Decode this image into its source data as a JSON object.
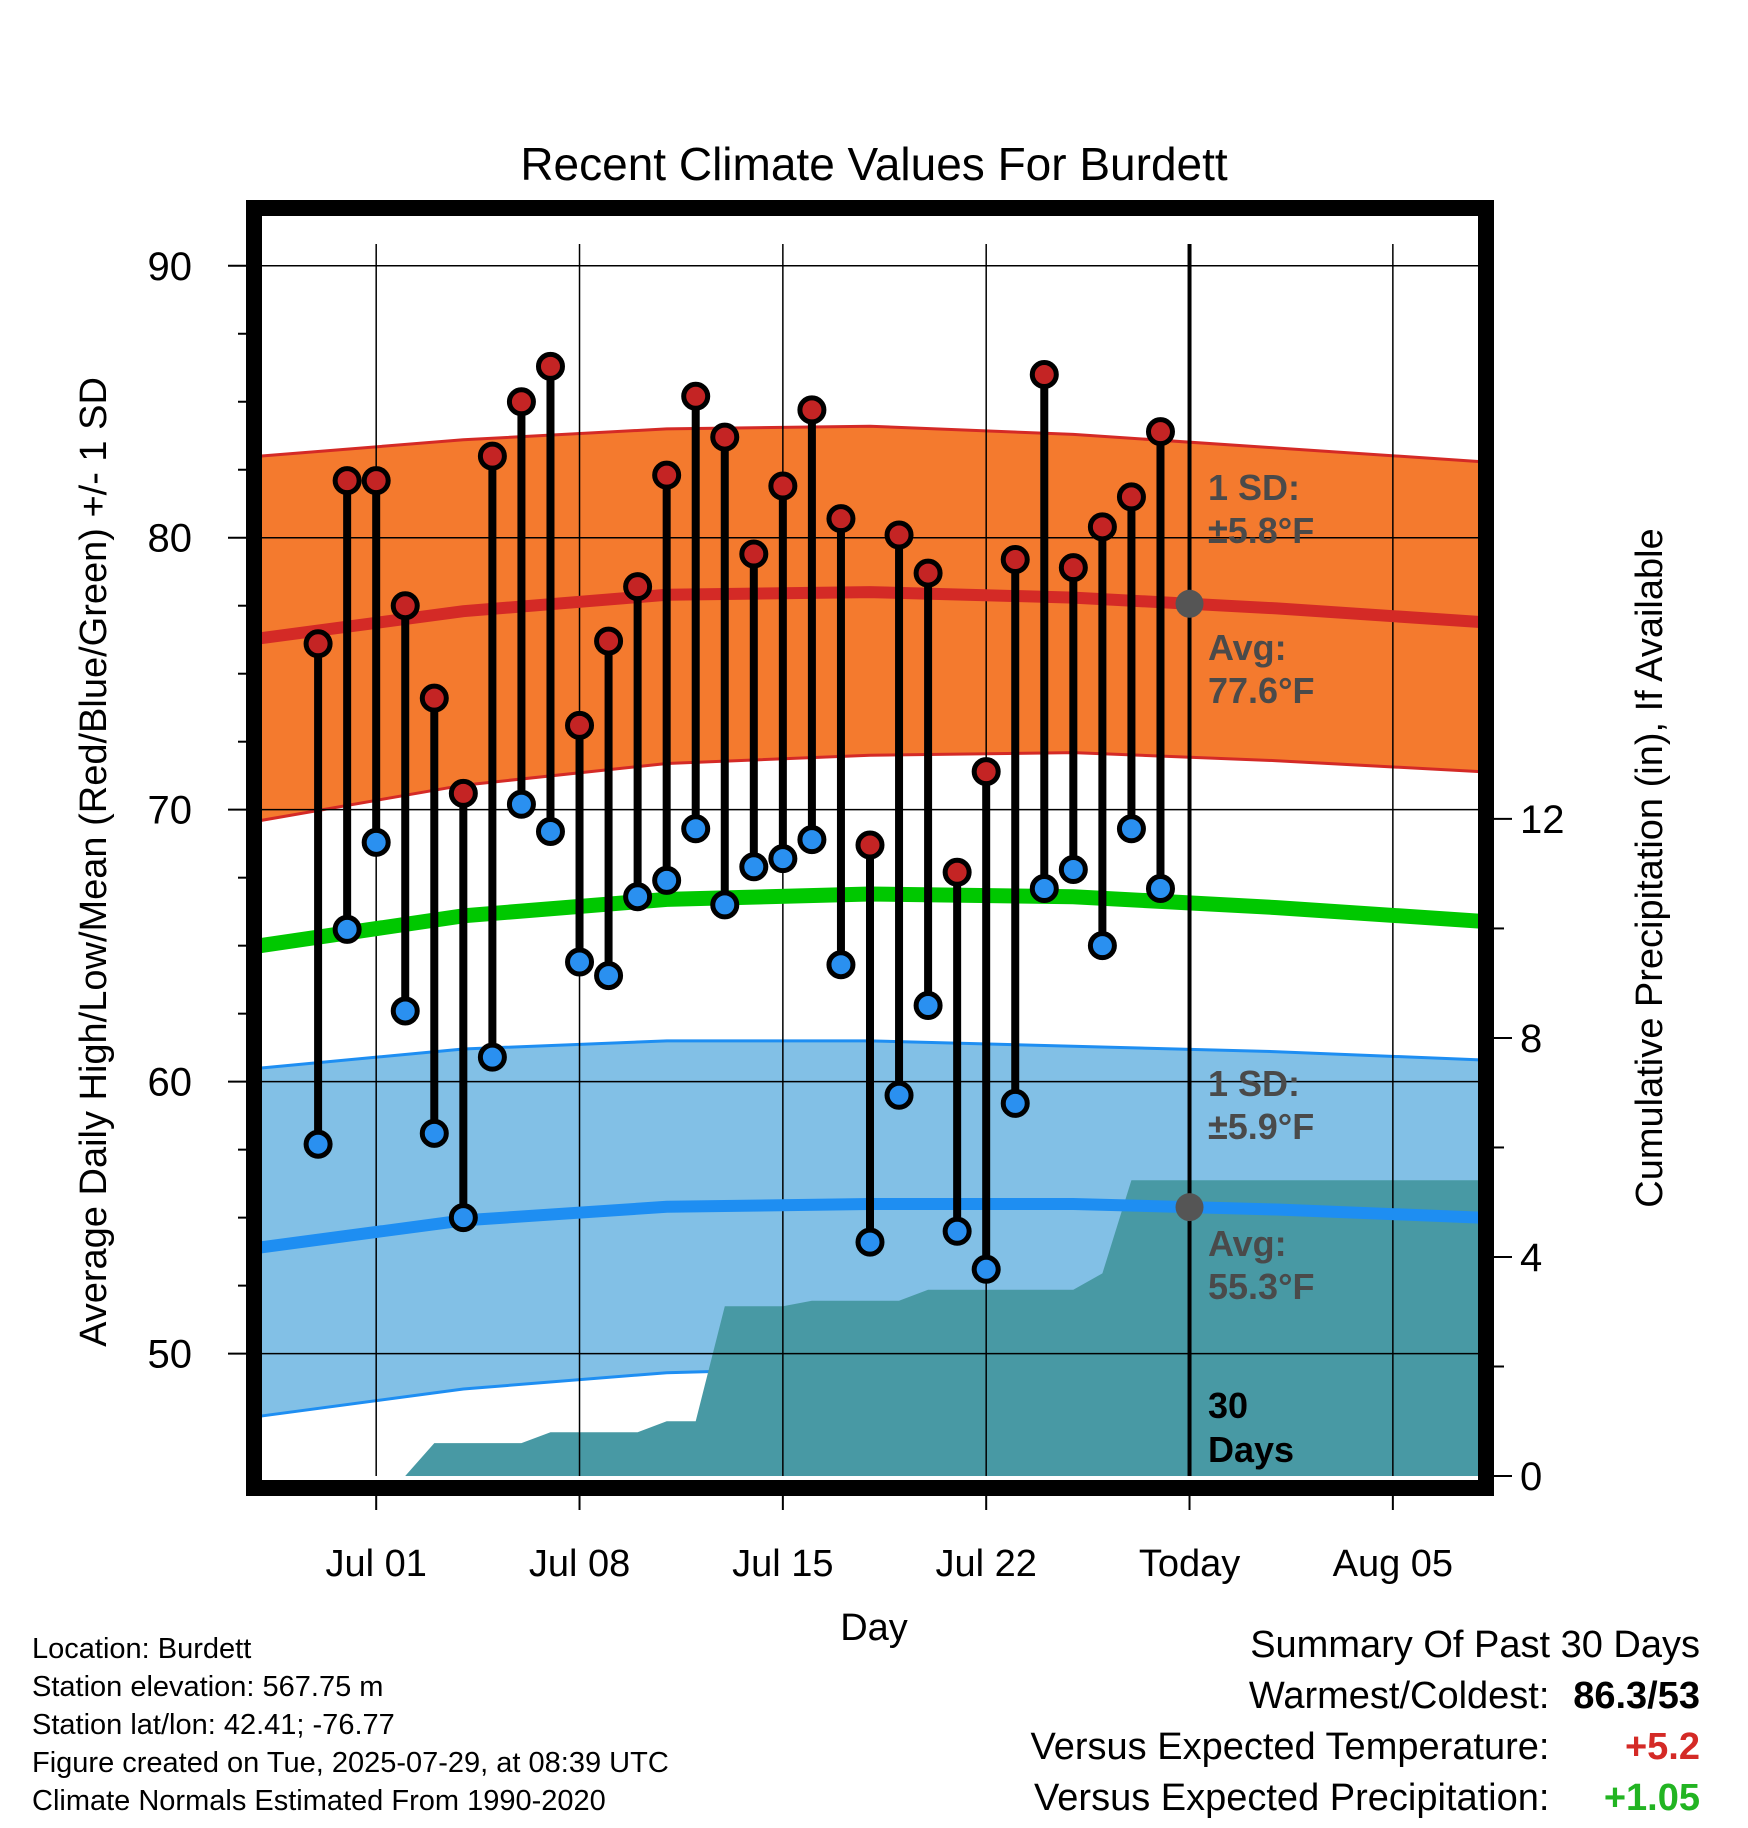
{
  "chart_data": {
    "type": "line",
    "title": "Recent Climate Values For Burdett",
    "xlabel": "Day",
    "ylabel": "Average Daily High/Low/Mean (Red/Blue/Green) +/- 1 SD",
    "y2label": "Cumulative Precipitation (in), If Available",
    "x_ticks": [
      "Jul 01",
      "Jul 08",
      "Jul 15",
      "Jul 22",
      "Today",
      "Aug 05"
    ],
    "x_range": [
      "2025-06-27",
      "2025-08-08"
    ],
    "ylim": [
      45.5,
      90.8
    ],
    "y_ticks": [
      50,
      60,
      70,
      80,
      90
    ],
    "y2lim": [
      0,
      22.5
    ],
    "y2_ticks": [
      0,
      4,
      8,
      12
    ],
    "today": "2025-07-29",
    "grid": true,
    "daily": {
      "dates": [
        "2025-06-29",
        "2025-06-30",
        "2025-07-01",
        "2025-07-02",
        "2025-07-03",
        "2025-07-04",
        "2025-07-05",
        "2025-07-06",
        "2025-07-07",
        "2025-07-08",
        "2025-07-09",
        "2025-07-10",
        "2025-07-11",
        "2025-07-12",
        "2025-07-13",
        "2025-07-14",
        "2025-07-15",
        "2025-07-16",
        "2025-07-17",
        "2025-07-18",
        "2025-07-19",
        "2025-07-20",
        "2025-07-21",
        "2025-07-22",
        "2025-07-23",
        "2025-07-24",
        "2025-07-25",
        "2025-07-26",
        "2025-07-27",
        "2025-07-28"
      ],
      "high": [
        76.1,
        82.1,
        82.1,
        77.5,
        74.1,
        70.6,
        83.0,
        85.0,
        86.3,
        73.1,
        76.2,
        78.2,
        82.3,
        85.2,
        83.7,
        79.4,
        81.9,
        84.7,
        80.7,
        68.7,
        80.1,
        78.7,
        67.7,
        71.4,
        79.2,
        86.0,
        78.9,
        80.4,
        81.5,
        83.9
      ],
      "low": [
        57.7,
        65.6,
        68.8,
        62.6,
        58.1,
        55.0,
        60.9,
        70.2,
        69.2,
        64.4,
        63.9,
        66.8,
        67.4,
        69.3,
        66.5,
        67.9,
        68.2,
        68.9,
        64.3,
        54.1,
        59.5,
        62.8,
        54.5,
        53.1,
        59.2,
        67.1,
        67.8,
        65.0,
        69.3,
        67.1
      ]
    },
    "normals": {
      "dates": [
        "2025-06-27",
        "2025-07-04",
        "2025-07-11",
        "2025-07-18",
        "2025-07-25",
        "2025-08-01",
        "2025-08-08"
      ],
      "avg_high": [
        76.3,
        77.3,
        77.9,
        78.0,
        77.8,
        77.4,
        76.9
      ],
      "avg_high_upper": [
        83.0,
        83.6,
        84.0,
        84.1,
        83.8,
        83.3,
        82.8
      ],
      "avg_high_lower": [
        69.6,
        70.9,
        71.7,
        72.0,
        72.1,
        71.8,
        71.4
      ],
      "avg_mean": [
        65.0,
        66.1,
        66.7,
        66.9,
        66.8,
        66.4,
        65.9
      ],
      "avg_low": [
        53.9,
        54.9,
        55.4,
        55.5,
        55.5,
        55.3,
        55.0
      ],
      "avg_low_upper": [
        60.5,
        61.2,
        61.5,
        61.5,
        61.3,
        61.1,
        60.8
      ],
      "avg_low_lower": [
        47.7,
        48.7,
        49.3,
        49.5,
        49.5,
        49.4,
        49.2
      ]
    },
    "precip": {
      "dates": [
        "2025-07-02",
        "2025-07-03",
        "2025-07-04",
        "2025-07-05",
        "2025-07-06",
        "2025-07-07",
        "2025-07-08",
        "2025-07-09",
        "2025-07-10",
        "2025-07-11",
        "2025-07-12",
        "2025-07-13",
        "2025-07-14",
        "2025-07-15",
        "2025-07-16",
        "2025-07-17",
        "2025-07-18",
        "2025-07-19",
        "2025-07-20",
        "2025-07-21",
        "2025-07-22",
        "2025-07-23",
        "2025-07-24",
        "2025-07-25",
        "2025-07-26",
        "2025-07-27",
        "2025-07-28",
        "2025-07-29",
        "2025-08-08"
      ],
      "cumulative": [
        0.0,
        0.6,
        0.6,
        0.6,
        0.6,
        0.8,
        0.8,
        0.8,
        0.8,
        1.0,
        1.0,
        3.1,
        3.1,
        3.1,
        3.2,
        3.2,
        3.2,
        3.2,
        3.4,
        3.4,
        3.4,
        3.4,
        3.4,
        3.4,
        3.7,
        5.4,
        5.4,
        5.4,
        5.4
      ]
    },
    "annotations": {
      "high_sd": "1 SD:",
      "high_sd_value": "±5.8°F",
      "high_avg": "Avg:",
      "high_avg_value": "77.6°F",
      "low_sd": "1 SD:",
      "low_sd_value": "±5.9°F",
      "low_avg": "Avg:",
      "low_avg_value": "55.3°F",
      "days_count": "30",
      "days_label": "Days"
    },
    "colors": {
      "high_band": "#f47a2e",
      "high_line": "#d42a26",
      "low_band": "#82c0e6",
      "low_line": "#1e8ef2",
      "mean_line": "#00c800",
      "precip_fill": "#4899a4",
      "high_marker": "#c42424",
      "low_marker": "#2a90f0",
      "annotation": "#4a4a4a"
    }
  },
  "footer": {
    "location": "Location: Burdett",
    "elevation": "Station elevation: 567.75 m",
    "latlon": "Station lat/lon: 42.41; -76.77",
    "created": "Figure created on Tue, 2025-07-29, at 08:39 UTC",
    "normals": "Climate Normals Estimated From 1990-2020"
  },
  "summary": {
    "title": "Summary Of Past 30 Days",
    "warmest_label": "Warmest/Coldest:",
    "warmest_value": "86.3/53",
    "temp_label": "Versus Expected Temperature:",
    "temp_value": "+5.2",
    "precip_label": "Versus Expected Precipitation:",
    "precip_value": "+1.05",
    "temp_color": "#d42a26",
    "precip_color": "#22b422"
  }
}
